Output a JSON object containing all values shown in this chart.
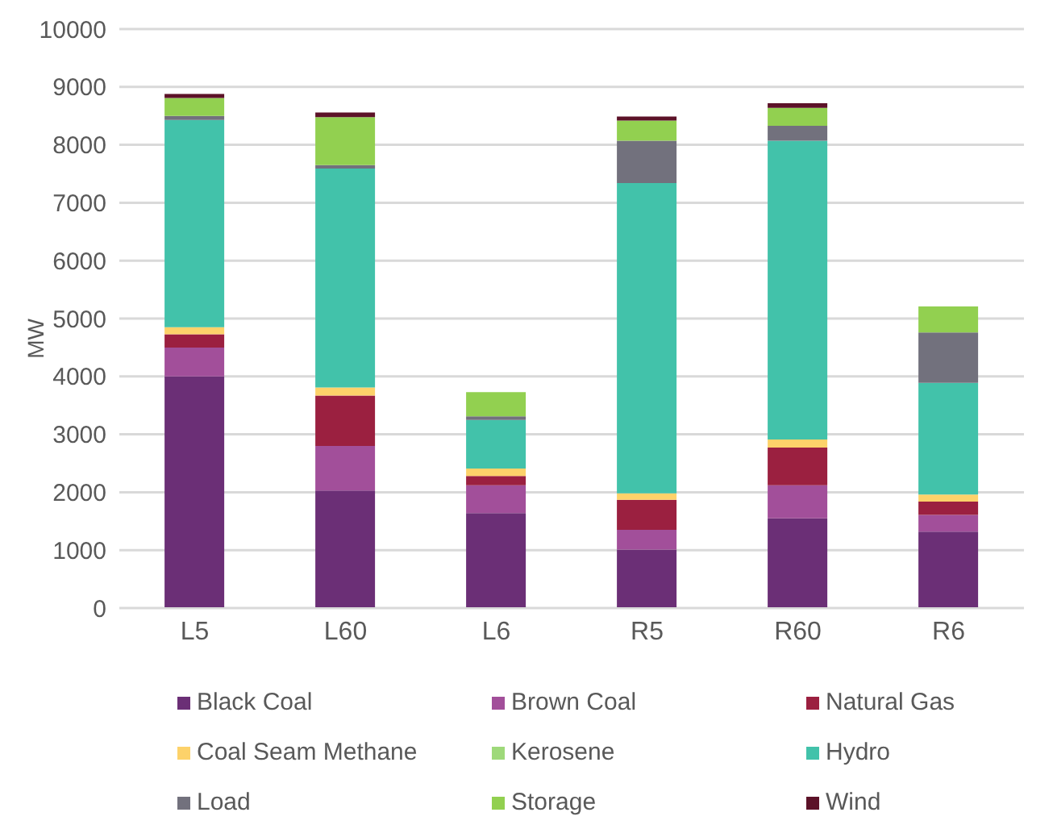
{
  "chart_data": {
    "type": "bar",
    "stacked": true,
    "ylabel": "MW",
    "categories": [
      "L5",
      "L60",
      "L6",
      "R5",
      "R60",
      "R6"
    ],
    "series": [
      {
        "name": "Black Coal",
        "color": "#6b2f76",
        "values": [
          4000,
          2030,
          1640,
          1010,
          1550,
          1320
        ]
      },
      {
        "name": "Brown Coal",
        "color": "#a24f9a",
        "values": [
          500,
          770,
          480,
          340,
          570,
          290
        ]
      },
      {
        "name": "Natural Gas",
        "color": "#9b2040",
        "values": [
          230,
          870,
          160,
          520,
          650,
          230
        ]
      },
      {
        "name": "Coal Seam Methane",
        "color": "#fdd26a",
        "values": [
          120,
          140,
          130,
          110,
          140,
          120
        ]
      },
      {
        "name": "Kerosene",
        "color": "#9ed97a",
        "values": [
          0,
          0,
          0,
          0,
          0,
          0
        ]
      },
      {
        "name": "Hydro",
        "color": "#42c2aa",
        "values": [
          3580,
          3780,
          840,
          5360,
          5160,
          1930
        ]
      },
      {
        "name": "Load",
        "color": "#72717d",
        "values": [
          70,
          60,
          60,
          730,
          260,
          870
        ]
      },
      {
        "name": "Storage",
        "color": "#92d050",
        "values": [
          310,
          830,
          420,
          350,
          310,
          450
        ]
      },
      {
        "name": "Wind",
        "color": "#5c1228",
        "values": [
          70,
          80,
          0,
          70,
          80,
          0
        ]
      }
    ],
    "ylim": [
      0,
      10000
    ],
    "yticks": [
      0,
      1000,
      2000,
      3000,
      4000,
      5000,
      6000,
      7000,
      8000,
      9000,
      10000
    ],
    "grid": "y",
    "legend": "bottom"
  }
}
